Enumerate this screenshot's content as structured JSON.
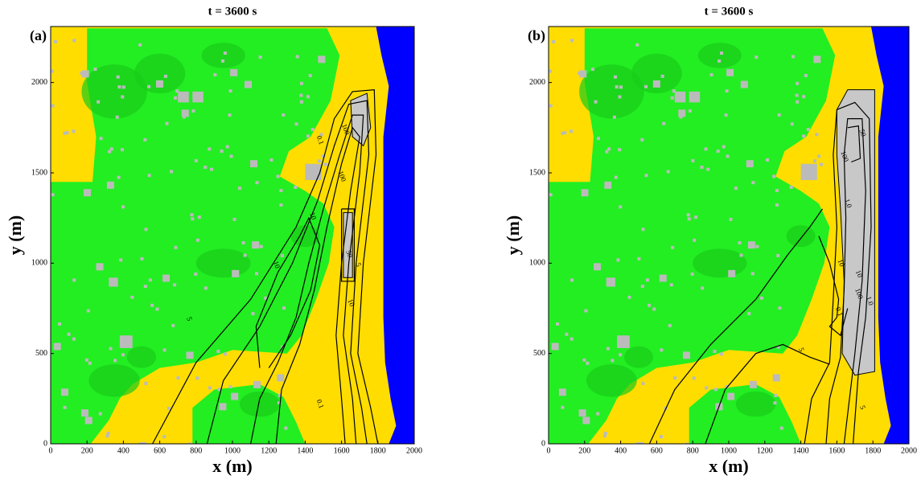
{
  "chart_data": [
    {
      "type": "contour",
      "title": "t = 3600 s",
      "panel_label": "(a)",
      "x_label": "x (m)",
      "y_label": "y (m)",
      "xlim": [
        0,
        2000
      ],
      "ylim": [
        0,
        2310
      ],
      "xticks": [
        0,
        200,
        400,
        600,
        800,
        1000,
        1200,
        1400,
        1600,
        1800,
        2000
      ],
      "yticks": [
        0,
        500,
        1000,
        1500,
        2000
      ],
      "contour_labels": [
        "0.1",
        "100",
        "100",
        "50",
        "10",
        "5",
        "10",
        "5",
        "10",
        "0.1"
      ]
    },
    {
      "type": "contour",
      "title": "t = 3600 s",
      "panel_label": "(b)",
      "x_label": "x (m)",
      "y_label": "y (m)",
      "xlim": [
        0,
        2000
      ],
      "ylim": [
        0,
        2310
      ],
      "xticks": [
        0,
        200,
        400,
        600,
        800,
        1000,
        1200,
        1400,
        1600,
        1800,
        2000
      ],
      "yticks": [
        0,
        500,
        1000,
        1500,
        2000
      ],
      "contour_labels": [
        "100",
        "50",
        "1.0",
        "10",
        "10",
        "1.0",
        "100",
        "0.1",
        "5",
        "5"
      ]
    }
  ]
}
